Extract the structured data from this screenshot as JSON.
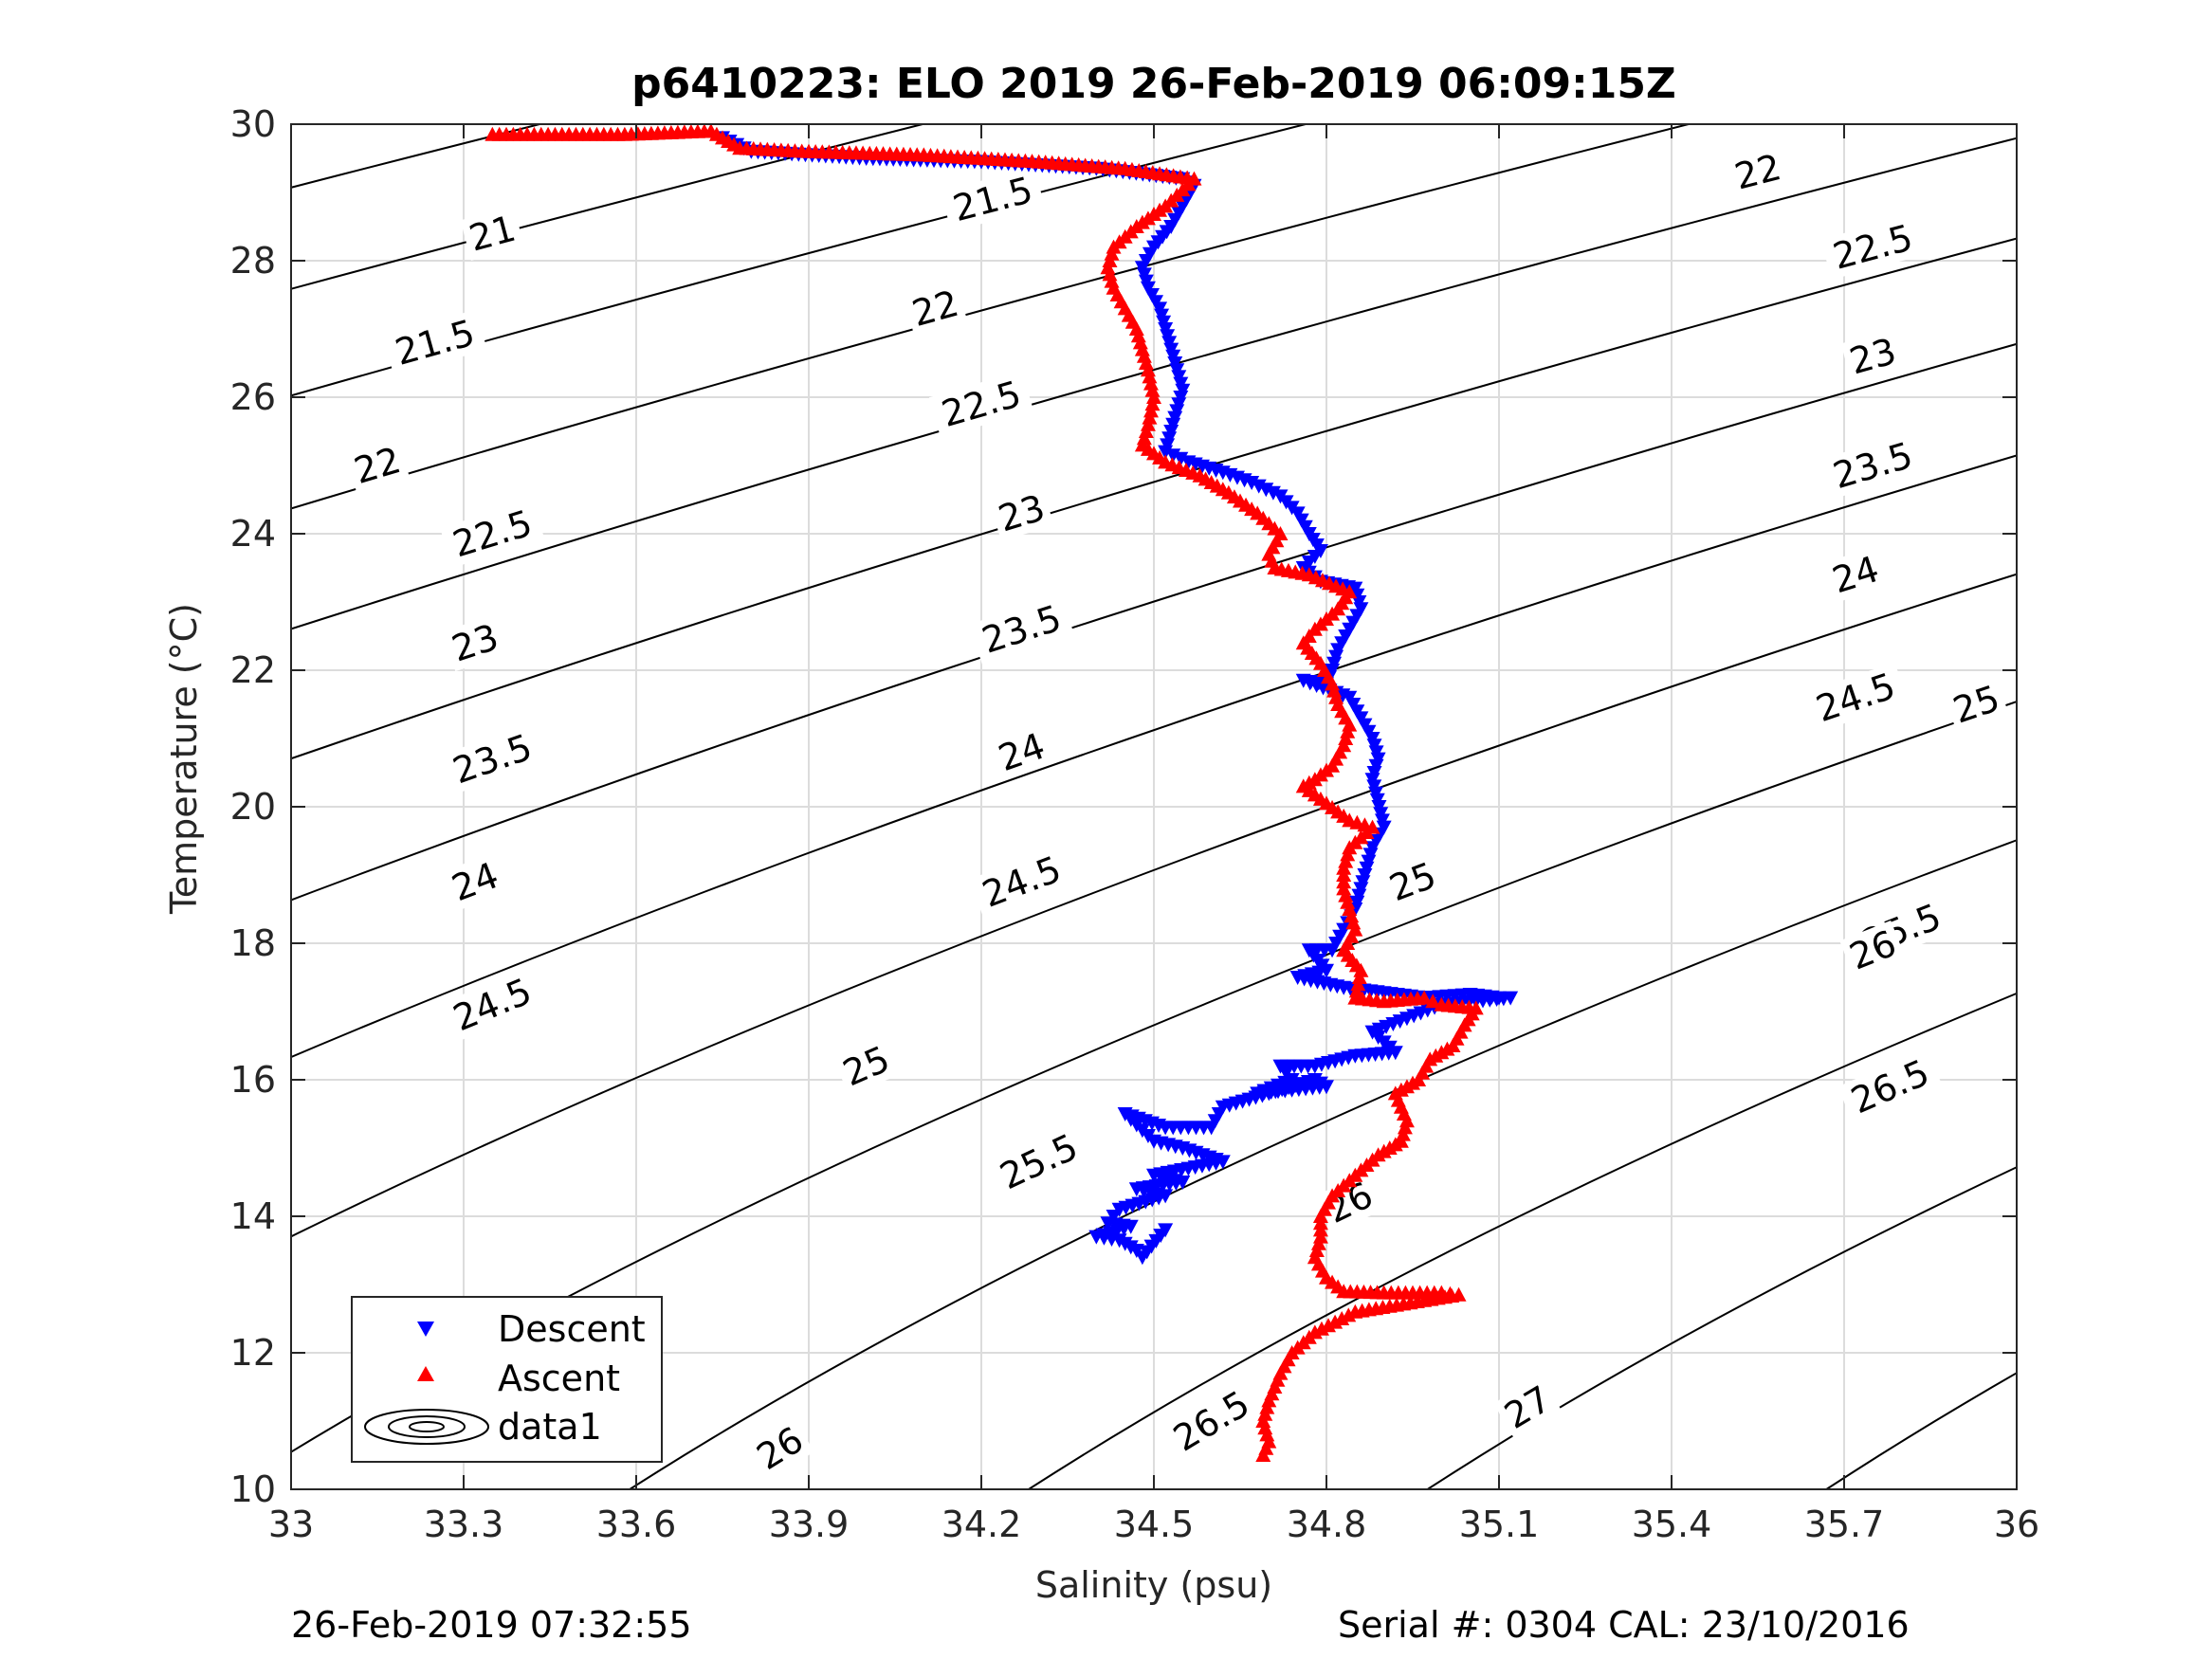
{
  "footer": {
    "timestamp": "26-Feb-2019 07:32:55",
    "serial_cal": "Serial #: 0304  CAL: 23/10/2016"
  },
  "colors": {
    "descent": "#0000ff",
    "ascent": "#ff0000",
    "isopycnal": "#000000",
    "grid": "#dcdcdc"
  },
  "chart_data": {
    "type": "scatter",
    "title": "p6410223: ELO 2019 26-Feb-2019 06:09:15Z",
    "xlabel": "Salinity (psu)",
    "ylabel": "Temperature (°C)",
    "xlim": [
      33,
      36
    ],
    "ylim": [
      10,
      30
    ],
    "xticks": [
      "33",
      "33.3",
      "33.6",
      "33.9",
      "34.2",
      "34.5",
      "34.8",
      "35.1",
      "35.4",
      "35.7",
      "36"
    ],
    "yticks": [
      "10",
      "12",
      "14",
      "16",
      "18",
      "20",
      "22",
      "24",
      "26",
      "28",
      "30"
    ],
    "grid": true,
    "legend": {
      "placement": "bottom-left",
      "entries": [
        "Descent",
        "Ascent",
        "data1"
      ]
    },
    "series": [
      {
        "name": "Descent",
        "marker": "triangle-down",
        "points": [
          [
            33.75,
            29.8
          ],
          [
            33.8,
            29.6
          ],
          [
            34.0,
            29.5
          ],
          [
            34.2,
            29.45
          ],
          [
            34.4,
            29.35
          ],
          [
            34.55,
            29.2
          ],
          [
            34.57,
            29.1
          ],
          [
            34.55,
            28.8
          ],
          [
            34.53,
            28.5
          ],
          [
            34.5,
            28.2
          ],
          [
            34.48,
            27.9
          ],
          [
            34.49,
            27.6
          ],
          [
            34.51,
            27.3
          ],
          [
            34.52,
            27.0
          ],
          [
            34.53,
            26.7
          ],
          [
            34.54,
            26.4
          ],
          [
            34.55,
            26.1
          ],
          [
            34.54,
            25.8
          ],
          [
            34.53,
            25.5
          ],
          [
            34.52,
            25.2
          ],
          [
            34.56,
            25.05
          ],
          [
            34.62,
            24.9
          ],
          [
            34.67,
            24.75
          ],
          [
            34.72,
            24.55
          ],
          [
            34.75,
            24.3
          ],
          [
            34.77,
            24.0
          ],
          [
            34.79,
            23.75
          ],
          [
            34.76,
            23.5
          ],
          [
            34.79,
            23.3
          ],
          [
            34.85,
            23.2
          ],
          [
            34.86,
            22.9
          ],
          [
            34.84,
            22.6
          ],
          [
            34.82,
            22.3
          ],
          [
            34.81,
            22.0
          ],
          [
            34.8,
            21.8
          ],
          [
            34.76,
            21.85
          ],
          [
            34.84,
            21.6
          ],
          [
            34.86,
            21.3
          ],
          [
            34.88,
            21.0
          ],
          [
            34.89,
            20.7
          ],
          [
            34.88,
            20.4
          ],
          [
            34.9,
            19.7
          ],
          [
            34.88,
            19.4
          ],
          [
            34.87,
            19.1
          ],
          [
            34.86,
            18.8
          ],
          [
            34.85,
            18.5
          ],
          [
            34.83,
            18.2
          ],
          [
            34.81,
            17.9
          ],
          [
            34.77,
            17.9
          ],
          [
            34.8,
            17.6
          ],
          [
            34.75,
            17.5
          ],
          [
            34.83,
            17.35
          ],
          [
            34.97,
            17.2
          ],
          [
            35.05,
            17.25
          ],
          [
            35.1,
            17.2
          ],
          [
            35.12,
            17.2
          ],
          [
            35.0,
            17.1
          ],
          [
            34.94,
            16.9
          ],
          [
            34.88,
            16.7
          ],
          [
            34.92,
            16.4
          ],
          [
            34.85,
            16.35
          ],
          [
            34.78,
            16.2
          ],
          [
            34.72,
            16.2
          ],
          [
            34.74,
            16.0
          ],
          [
            34.68,
            15.8
          ],
          [
            34.8,
            15.9
          ],
          [
            34.78,
            16.0
          ],
          [
            34.62,
            15.6
          ],
          [
            34.6,
            15.3
          ],
          [
            34.52,
            15.3
          ],
          [
            34.45,
            15.5
          ],
          [
            34.5,
            15.1
          ],
          [
            34.55,
            15.0
          ],
          [
            34.62,
            14.8
          ],
          [
            34.5,
            14.6
          ],
          [
            34.55,
            14.5
          ],
          [
            34.47,
            14.4
          ],
          [
            34.52,
            14.3
          ],
          [
            34.44,
            14.1
          ],
          [
            34.42,
            13.9
          ],
          [
            34.46,
            13.85
          ],
          [
            34.4,
            13.7
          ],
          [
            34.44,
            13.65
          ],
          [
            34.47,
            13.5
          ],
          [
            34.48,
            13.4
          ],
          [
            34.52,
            13.8
          ]
        ]
      },
      {
        "name": "Ascent",
        "marker": "triangle-up",
        "points": [
          [
            33.35,
            29.85
          ],
          [
            33.58,
            29.85
          ],
          [
            33.73,
            29.9
          ],
          [
            33.76,
            29.75
          ],
          [
            33.78,
            29.65
          ],
          [
            33.9,
            29.6
          ],
          [
            34.1,
            29.55
          ],
          [
            34.3,
            29.45
          ],
          [
            34.45,
            29.35
          ],
          [
            34.57,
            29.2
          ],
          [
            34.52,
            28.8
          ],
          [
            34.47,
            28.5
          ],
          [
            34.43,
            28.2
          ],
          [
            34.42,
            27.9
          ],
          [
            34.43,
            27.6
          ],
          [
            34.45,
            27.3
          ],
          [
            34.47,
            27.0
          ],
          [
            34.48,
            26.7
          ],
          [
            34.49,
            26.4
          ],
          [
            34.5,
            26.0
          ],
          [
            34.49,
            25.6
          ],
          [
            34.48,
            25.3
          ],
          [
            34.52,
            25.05
          ],
          [
            34.58,
            24.85
          ],
          [
            34.63,
            24.6
          ],
          [
            34.68,
            24.3
          ],
          [
            34.72,
            24.0
          ],
          [
            34.7,
            23.7
          ],
          [
            34.71,
            23.5
          ],
          [
            34.77,
            23.4
          ],
          [
            34.84,
            23.15
          ],
          [
            34.82,
            22.9
          ],
          [
            34.78,
            22.6
          ],
          [
            34.76,
            22.4
          ],
          [
            34.79,
            22.1
          ],
          [
            34.81,
            21.8
          ],
          [
            34.82,
            21.5
          ],
          [
            34.84,
            21.2
          ],
          [
            34.83,
            20.9
          ],
          [
            34.81,
            20.6
          ],
          [
            34.78,
            20.4
          ],
          [
            34.76,
            20.3
          ],
          [
            34.84,
            19.8
          ],
          [
            34.88,
            19.7
          ],
          [
            34.84,
            19.4
          ],
          [
            34.83,
            19.1
          ],
          [
            34.83,
            18.8
          ],
          [
            34.84,
            18.5
          ],
          [
            34.85,
            18.2
          ],
          [
            34.83,
            17.9
          ],
          [
            34.86,
            17.6
          ],
          [
            34.85,
            17.2
          ],
          [
            34.9,
            17.15
          ],
          [
            34.97,
            17.2
          ],
          [
            35.0,
            17.1
          ],
          [
            35.06,
            17.05
          ],
          [
            35.04,
            16.8
          ],
          [
            35.02,
            16.5
          ],
          [
            34.98,
            16.3
          ],
          [
            34.96,
            16.0
          ],
          [
            34.92,
            15.8
          ],
          [
            34.94,
            15.4
          ],
          [
            34.93,
            15.1
          ],
          [
            34.89,
            14.9
          ],
          [
            34.85,
            14.6
          ],
          [
            34.81,
            14.3
          ],
          [
            34.79,
            14.0
          ],
          [
            34.79,
            13.7
          ],
          [
            34.78,
            13.4
          ],
          [
            34.8,
            13.1
          ],
          [
            34.83,
            12.9
          ],
          [
            34.9,
            12.88
          ],
          [
            35.0,
            12.88
          ],
          [
            35.03,
            12.85
          ],
          [
            34.85,
            12.6
          ],
          [
            34.78,
            12.3
          ],
          [
            34.74,
            12.0
          ],
          [
            34.72,
            11.7
          ],
          [
            34.7,
            11.3
          ],
          [
            34.69,
            11.0
          ],
          [
            34.7,
            10.7
          ],
          [
            34.69,
            10.5
          ]
        ]
      }
    ],
    "isopycnals": [
      {
        "sigma": "21",
        "label_at": [
          33.35,
          28.4
        ]
      },
      {
        "sigma": "21.5",
        "label_at": [
          34.22,
          28.9
        ]
      },
      {
        "sigma": "21.5",
        "label_at": [
          33.25,
          26.8
        ]
      },
      {
        "sigma": "22",
        "label_at": [
          35.55,
          29.3
        ]
      },
      {
        "sigma": "22",
        "label_at": [
          34.12,
          27.3
        ]
      },
      {
        "sigma": "22",
        "label_at": [
          33.15,
          25.0
        ]
      },
      {
        "sigma": "22.5",
        "label_at": [
          35.75,
          28.2
        ]
      },
      {
        "sigma": "22.5",
        "label_at": [
          34.2,
          25.9
        ]
      },
      {
        "sigma": "22.5",
        "label_at": [
          33.35,
          24.0
        ]
      },
      {
        "sigma": "23",
        "label_at": [
          35.75,
          26.6
        ]
      },
      {
        "sigma": "23",
        "label_at": [
          34.27,
          24.3
        ]
      },
      {
        "sigma": "23",
        "label_at": [
          33.32,
          22.4
        ]
      },
      {
        "sigma": "23.5",
        "label_at": [
          35.75,
          25.0
        ]
      },
      {
        "sigma": "23.5",
        "label_at": [
          34.27,
          22.6
        ]
      },
      {
        "sigma": "23.5",
        "label_at": [
          33.35,
          20.7
        ]
      },
      {
        "sigma": "24",
        "label_at": [
          35.72,
          23.4
        ]
      },
      {
        "sigma": "24",
        "label_at": [
          34.27,
          20.8
        ]
      },
      {
        "sigma": "24",
        "label_at": [
          33.32,
          18.9
        ]
      },
      {
        "sigma": "24.5",
        "label_at": [
          35.72,
          21.6
        ]
      },
      {
        "sigma": "24.5",
        "label_at": [
          34.27,
          18.9
        ]
      },
      {
        "sigma": "24.5",
        "label_at": [
          33.35,
          17.1
        ]
      },
      {
        "sigma": "25",
        "label_at": [
          35.93,
          21.5
        ]
      },
      {
        "sigma": "25",
        "label_at": [
          34.95,
          18.9
        ]
      },
      {
        "sigma": "25",
        "label_at": [
          34.0,
          16.2
        ]
      },
      {
        "sigma": "25.5",
        "label_at": [
          35.8,
          18.2
        ]
      },
      {
        "sigma": "25.5",
        "label_at": [
          34.3,
          14.8
        ]
      },
      {
        "sigma": "25.5",
        "label_at": [
          33.45,
          11.6
        ]
      },
      {
        "sigma": "26",
        "label_at": [
          35.75,
          17.9
        ]
      },
      {
        "sigma": "26",
        "label_at": [
          34.84,
          14.2
        ]
      },
      {
        "sigma": "26",
        "label_at": [
          33.85,
          10.6
        ]
      },
      {
        "sigma": "26.5",
        "label_at": [
          35.78,
          15.9
        ]
      },
      {
        "sigma": "26.5",
        "label_at": [
          34.6,
          11.0
        ]
      },
      {
        "sigma": "27",
        "label_at": [
          35.15,
          11.2
        ]
      }
    ]
  }
}
